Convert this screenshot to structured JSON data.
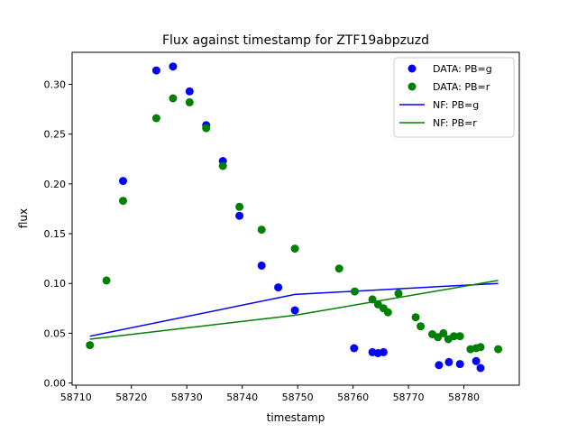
{
  "chart_data": {
    "type": "scatter",
    "title": "Flux against timestamp for ZTF19abpzuzd",
    "xlabel": "timestamp",
    "ylabel": "flux",
    "xlim": [
      58709.3,
      58790.0
    ],
    "ylim": [
      -0.0022,
      0.3322
    ],
    "xticks": [
      58710,
      58720,
      58730,
      58740,
      58750,
      58760,
      58770,
      58780
    ],
    "yticks": [
      0.0,
      0.05,
      0.1,
      0.15,
      0.2,
      0.25,
      0.3
    ],
    "ytick_labels": [
      "0.00",
      "0.05",
      "0.10",
      "0.15",
      "0.20",
      "0.25",
      "0.30"
    ],
    "grid": false,
    "legend_position": "top-right",
    "series": [
      {
        "name": "DATA: PB=g",
        "kind": "points",
        "color": "#0000ff",
        "points": [
          [
            58718.5,
            0.203
          ],
          [
            58724.5,
            0.314
          ],
          [
            58727.5,
            0.318
          ],
          [
            58730.5,
            0.293
          ],
          [
            58733.5,
            0.259
          ],
          [
            58736.5,
            0.223
          ],
          [
            58739.5,
            0.168
          ],
          [
            58743.5,
            0.118
          ],
          [
            58746.5,
            0.096
          ],
          [
            58749.5,
            0.073
          ],
          [
            58760.2,
            0.035
          ],
          [
            58763.5,
            0.031
          ],
          [
            58764.5,
            0.03
          ],
          [
            58765.5,
            0.031
          ],
          [
            58775.5,
            0.018
          ],
          [
            58777.3,
            0.021
          ],
          [
            58779.3,
            0.019
          ],
          [
            58782.2,
            0.022
          ],
          [
            58783.0,
            0.015
          ]
        ]
      },
      {
        "name": "DATA: PB=r",
        "kind": "points",
        "color": "#008000",
        "points": [
          [
            58712.5,
            0.038
          ],
          [
            58715.5,
            0.103
          ],
          [
            58718.5,
            0.183
          ],
          [
            58724.5,
            0.266
          ],
          [
            58727.5,
            0.286
          ],
          [
            58730.5,
            0.282
          ],
          [
            58733.5,
            0.256
          ],
          [
            58736.5,
            0.218
          ],
          [
            58739.5,
            0.177
          ],
          [
            58743.5,
            0.154
          ],
          [
            58749.5,
            0.135
          ],
          [
            58757.5,
            0.115
          ],
          [
            58760.3,
            0.092
          ],
          [
            58763.5,
            0.084
          ],
          [
            58764.5,
            0.079
          ],
          [
            58765.5,
            0.075
          ],
          [
            58766.3,
            0.071
          ],
          [
            58768.2,
            0.09
          ],
          [
            58771.3,
            0.066
          ],
          [
            58772.2,
            0.057
          ],
          [
            58774.3,
            0.049
          ],
          [
            58775.3,
            0.046
          ],
          [
            58776.3,
            0.05
          ],
          [
            58777.2,
            0.044
          ],
          [
            58778.2,
            0.047
          ],
          [
            58779.3,
            0.047
          ],
          [
            58781.2,
            0.034
          ],
          [
            58782.2,
            0.035
          ],
          [
            58783.0,
            0.036
          ],
          [
            58786.2,
            0.034
          ]
        ]
      },
      {
        "name": "NF: PB=g",
        "kind": "line",
        "color": "#0000ff",
        "points": [
          [
            58712.5,
            0.047
          ],
          [
            58749.5,
            0.089
          ],
          [
            58786.2,
            0.1
          ]
        ]
      },
      {
        "name": "NF: PB=r",
        "kind": "line",
        "color": "#008000",
        "points": [
          [
            58712.5,
            0.044
          ],
          [
            58749.5,
            0.068
          ],
          [
            58786.2,
            0.103
          ]
        ]
      }
    ]
  }
}
